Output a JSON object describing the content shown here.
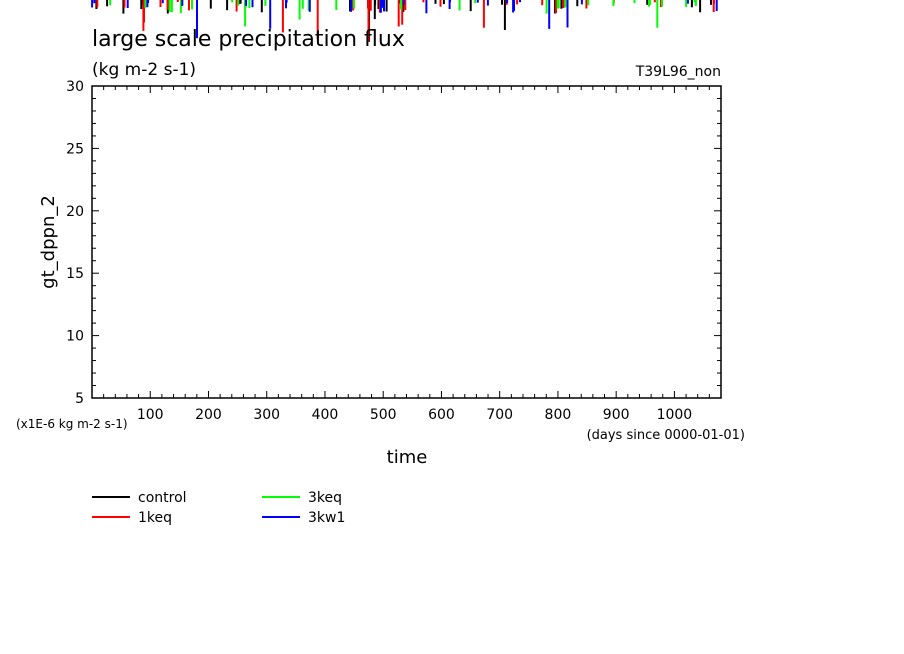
{
  "chart_data": {
    "type": "line",
    "title": "large scale precipitation flux",
    "subtitle": "(kg m-2 s-1)",
    "run_label": "T39L96_non",
    "ylabel": "gt_dppn_2",
    "yunit": "(x1E-6 kg m-2 s-1)",
    "xlabel": "time",
    "xunit": "(days since 0000-01-01)",
    "xlim": [
      0,
      1080
    ],
    "ylim": [
      5,
      30
    ],
    "xticks": [
      100,
      200,
      300,
      400,
      500,
      600,
      700,
      800,
      900,
      1000
    ],
    "yticks": [
      5,
      10,
      15,
      20,
      25,
      30
    ],
    "grid": false,
    "legend_position": "bottom-left",
    "series": [
      {
        "name": "control",
        "color": "#000000"
      },
      {
        "name": "1keq",
        "color": "#ff0000"
      },
      {
        "name": "3keq",
        "color": "#00ff00"
      },
      {
        "name": "3kw1",
        "color": "#0000ff"
      }
    ]
  }
}
